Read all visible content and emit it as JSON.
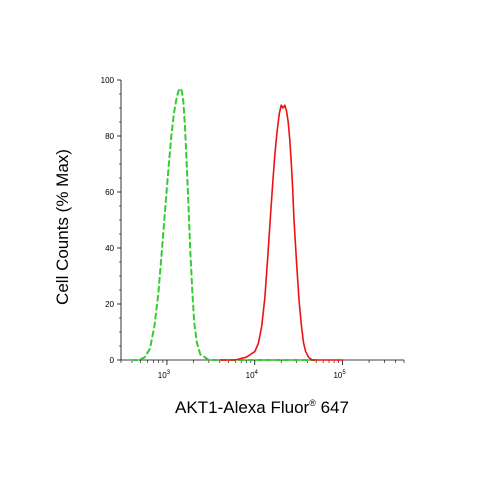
{
  "chart_data": {
    "type": "line",
    "xscale": "log",
    "xlim": [
      300,
      500000
    ],
    "ylim": [
      0,
      100
    ],
    "xlabel": {
      "main": "AKT1-Alexa Fluor",
      "mark": "®",
      "suffix": " 647"
    },
    "ylabel": "Cell Counts (% Max)",
    "grid": false,
    "legend": "none",
    "y_ticks": [
      "0",
      "20",
      "40",
      "60",
      "80",
      "100"
    ],
    "x_ticks": [
      {
        "base": "10",
        "exp": "3"
      },
      {
        "base": "10",
        "exp": "4"
      },
      {
        "base": "10",
        "exp": "5"
      }
    ],
    "series": [
      {
        "color": "#33cc33",
        "style": "dashed",
        "x": [
          400,
          480,
          560,
          640,
          720,
          800,
          880,
          960,
          1040,
          1120,
          1200,
          1280,
          1350,
          1420,
          1480,
          1540,
          1600,
          1680,
          1760,
          1850,
          1950,
          2050,
          2200,
          2400,
          2700,
          3000,
          3500,
          5000,
          10000,
          20000,
          50000
        ],
        "y": [
          0,
          0,
          1,
          4,
          12,
          24,
          40,
          55,
          68,
          80,
          88,
          93,
          96,
          97,
          96,
          92,
          84,
          70,
          55,
          38,
          24,
          13,
          6,
          2,
          1,
          0,
          0,
          0,
          0,
          0,
          0
        ]
      },
      {
        "color": "#ee1111",
        "style": "solid",
        "x": [
          4000,
          6000,
          8000,
          10000,
          11000,
          12000,
          13000,
          14000,
          15000,
          16000,
          17000,
          18000,
          19000,
          20000,
          21000,
          22000,
          23000,
          24000,
          25000,
          26000,
          27000,
          28000,
          30000,
          32000,
          34000,
          36000,
          38000,
          41000,
          45000,
          50000,
          60000,
          80000,
          100000
        ],
        "y": [
          0,
          0,
          1,
          3,
          6,
          12,
          22,
          36,
          50,
          63,
          74,
          82,
          88,
          91,
          90,
          91,
          89,
          85,
          79,
          71,
          61,
          50,
          34,
          21,
          12,
          6,
          3,
          1,
          0,
          0,
          0,
          0,
          0
        ]
      }
    ]
  }
}
